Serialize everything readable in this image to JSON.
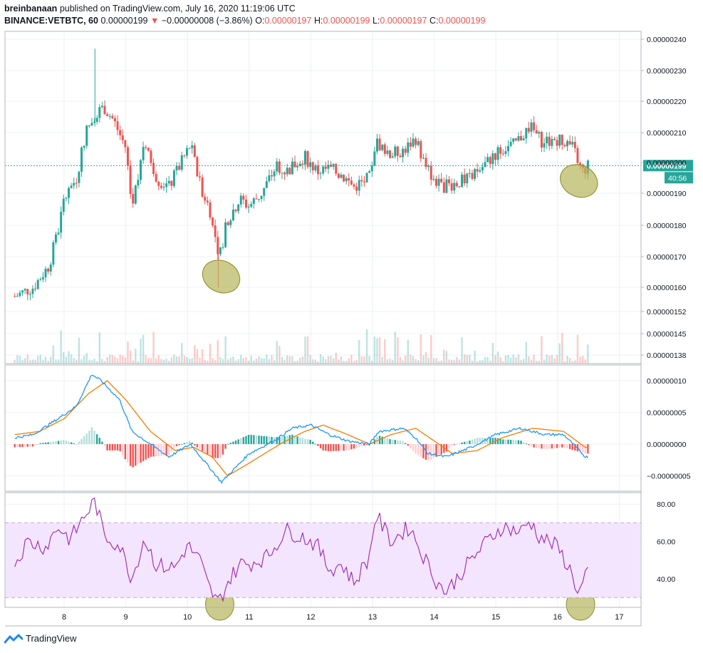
{
  "header": {
    "author": "breinbanaan",
    "published": "published on TradingView.com, July 16, 2020 11:19:06 UTC",
    "symbol": "BINANCE:VETBTC, 60",
    "last": "0.00000199",
    "change_arrow": "▼",
    "change": "−0.00000008 (−3.86%)",
    "o_label": "O:",
    "o_value": "0.00000197",
    "h_label": "H:",
    "h_value": "0.00000199",
    "l_label": "L:",
    "l_value": "0.00000197",
    "c_label": "C:",
    "c_value": "0.00000199"
  },
  "price_badge": {
    "value": "0.00000199",
    "countdown": "40:56"
  },
  "footer": {
    "brand": "TradingView",
    "logo_icon": "tradingview-logo-icon"
  },
  "colors": {
    "up": "#26a69a",
    "down": "#ef5350",
    "macd": "#2196f3",
    "signal": "#f57c00",
    "rsi": "#9c27b0",
    "rsi_band": "#f3e5fd",
    "highlight": "#b5b55a",
    "grid": "#eef0f3",
    "price_line": "#26a69a"
  },
  "chart_data": [
    {
      "type": "candlestick",
      "title": "BINANCE:VETBTC, 60",
      "x_tick_labels": [
        "8",
        "9",
        "10",
        "11",
        "12",
        "13",
        "14",
        "15",
        "16",
        "17"
      ],
      "y_tick_labels": [
        "0.00000240",
        "0.00000230",
        "0.00000220",
        "0.00000210",
        "0.00000200",
        "0.00000190",
        "0.00000180",
        "0.00000170",
        "0.00000160",
        "0.00000152",
        "0.00000145",
        "0.00000138"
      ],
      "x_range_days": [
        7.2,
        17.3
      ],
      "current_price": 1.99e-06,
      "close_path": [
        [
          7.2,
          1.57e-06
        ],
        [
          7.5,
          1.6e-06
        ],
        [
          7.75,
          1.67e-06
        ],
        [
          7.9,
          1.78e-06
        ],
        [
          8.0,
          1.88e-06
        ],
        [
          8.2,
          1.95e-06
        ],
        [
          8.35,
          2.1e-06
        ],
        [
          8.5,
          2.16e-06
        ],
        [
          8.65,
          2.18e-06
        ],
        [
          8.8,
          2.14e-06
        ],
        [
          9.0,
          2.05e-06
        ],
        [
          9.1,
          1.85e-06
        ],
        [
          9.3,
          2.08e-06
        ],
        [
          9.5,
          1.95e-06
        ],
        [
          9.7,
          1.92e-06
        ],
        [
          9.9,
          2e-06
        ],
        [
          10.05,
          2.06e-06
        ],
        [
          10.2,
          1.93e-06
        ],
        [
          10.4,
          1.83e-06
        ],
        [
          10.5,
          1.68e-06
        ],
        [
          10.65,
          1.82e-06
        ],
        [
          10.85,
          1.88e-06
        ],
        [
          11.0,
          1.86e-06
        ],
        [
          11.2,
          1.9e-06
        ],
        [
          11.45,
          1.99e-06
        ],
        [
          11.6,
          1.97e-06
        ],
        [
          11.9,
          2.02e-06
        ],
        [
          12.1,
          1.97e-06
        ],
        [
          12.3,
          1.98e-06
        ],
        [
          12.5,
          1.96e-06
        ],
        [
          12.7,
          1.92e-06
        ],
        [
          12.95,
          1.95e-06
        ],
        [
          13.05,
          2.07e-06
        ],
        [
          13.3,
          2.03e-06
        ],
        [
          13.5,
          2.04e-06
        ],
        [
          13.7,
          2.08e-06
        ],
        [
          13.85,
          1.99e-06
        ],
        [
          14.1,
          1.92e-06
        ],
        [
          14.3,
          1.93e-06
        ],
        [
          14.6,
          1.95e-06
        ],
        [
          14.85,
          2e-06
        ],
        [
          15.05,
          2.04e-06
        ],
        [
          15.3,
          2.06e-06
        ],
        [
          15.55,
          2.12e-06
        ],
        [
          15.75,
          2.07e-06
        ],
        [
          16.05,
          2.08e-06
        ],
        [
          16.25,
          2.05e-06
        ],
        [
          16.4,
          1.97e-06
        ],
        [
          16.5,
          1.99e-06
        ]
      ],
      "highlights": [
        {
          "x_day": 10.5,
          "price": 1.635e-06
        },
        {
          "x_day": 16.3,
          "price": 1.94e-06
        }
      ]
    },
    {
      "type": "volume",
      "series": [
        {
          "values_relative": "histogram under price pane"
        }
      ]
    },
    {
      "type": "macd",
      "y_tick_labels": [
        "0.00000010",
        "0.00000005",
        "0.00000000",
        "−0.00000005"
      ],
      "macd_path": [
        [
          7.2,
          1e-08
        ],
        [
          7.5,
          1.5e-08
        ],
        [
          7.9,
          4e-08
        ],
        [
          8.2,
          6e-08
        ],
        [
          8.45,
          1.1e-07
        ],
        [
          8.6,
          1e-07
        ],
        [
          8.9,
          7e-08
        ],
        [
          9.1,
          2e-08
        ],
        [
          9.4,
          0.0
        ],
        [
          9.7,
          -2e-08
        ],
        [
          10.05,
          0.0
        ],
        [
          10.3,
          -3e-08
        ],
        [
          10.55,
          -6e-08
        ],
        [
          10.8,
          -3.5e-08
        ],
        [
          11.0,
          -1.5e-08
        ],
        [
          11.4,
          5e-09
        ],
        [
          11.7,
          2.5e-08
        ],
        [
          12.0,
          3e-08
        ],
        [
          12.3,
          1.5e-08
        ],
        [
          12.6,
          5e-09
        ],
        [
          12.95,
          0.0
        ],
        [
          13.1,
          2e-08
        ],
        [
          13.5,
          2.5e-08
        ],
        [
          13.7,
          1e-08
        ],
        [
          13.9,
          -1.5e-08
        ],
        [
          14.2,
          -2e-08
        ],
        [
          14.6,
          -5e-09
        ],
        [
          15.0,
          1.5e-08
        ],
        [
          15.4,
          2.5e-08
        ],
        [
          15.8,
          1.5e-08
        ],
        [
          16.1,
          1.5e-08
        ],
        [
          16.45,
          -2e-08
        ]
      ],
      "signal_path": [
        [
          7.2,
          1.5e-08
        ],
        [
          7.6,
          2e-08
        ],
        [
          8.0,
          4e-08
        ],
        [
          8.4,
          8e-08
        ],
        [
          8.7,
          1e-07
        ],
        [
          9.0,
          7e-08
        ],
        [
          9.4,
          2e-08
        ],
        [
          9.8,
          -1e-08
        ],
        [
          10.1,
          -5e-09
        ],
        [
          10.4,
          -2e-08
        ],
        [
          10.65,
          -5e-08
        ],
        [
          11.0,
          -3e-08
        ],
        [
          11.5,
          0.0
        ],
        [
          11.9,
          2e-08
        ],
        [
          12.2,
          3e-08
        ],
        [
          12.6,
          1.5e-08
        ],
        [
          12.95,
          0.0
        ],
        [
          13.3,
          1.5e-08
        ],
        [
          13.7,
          2.5e-08
        ],
        [
          14.0,
          5e-09
        ],
        [
          14.3,
          -1.5e-08
        ],
        [
          14.7,
          -1e-08
        ],
        [
          15.1,
          1e-08
        ],
        [
          15.6,
          2.5e-08
        ],
        [
          16.1,
          2e-08
        ],
        [
          16.45,
          -5e-09
        ]
      ]
    },
    {
      "type": "rsi",
      "y_tick_labels": [
        "80.00",
        "60.00",
        "40.00"
      ],
      "upper_band": 70,
      "lower_band": 30,
      "rsi_path": [
        [
          7.2,
          48
        ],
        [
          7.4,
          60
        ],
        [
          7.7,
          57
        ],
        [
          7.9,
          68
        ],
        [
          8.1,
          61
        ],
        [
          8.3,
          72
        ],
        [
          8.5,
          82
        ],
        [
          8.65,
          63
        ],
        [
          8.9,
          58
        ],
        [
          9.1,
          40
        ],
        [
          9.3,
          62
        ],
        [
          9.5,
          47
        ],
        [
          9.8,
          46
        ],
        [
          10.0,
          58
        ],
        [
          10.2,
          50
        ],
        [
          10.35,
          35
        ],
        [
          10.5,
          27
        ],
        [
          10.65,
          38
        ],
        [
          10.85,
          48
        ],
        [
          11.0,
          48
        ],
        [
          11.3,
          52
        ],
        [
          11.6,
          66
        ],
        [
          11.9,
          62
        ],
        [
          12.1,
          58
        ],
        [
          12.3,
          45
        ],
        [
          12.5,
          48
        ],
        [
          12.7,
          38
        ],
        [
          12.95,
          52
        ],
        [
          13.05,
          75
        ],
        [
          13.3,
          60
        ],
        [
          13.6,
          68
        ],
        [
          13.8,
          54
        ],
        [
          14.05,
          38
        ],
        [
          14.2,
          33
        ],
        [
          14.5,
          46
        ],
        [
          14.85,
          60
        ],
        [
          15.1,
          68
        ],
        [
          15.4,
          65
        ],
        [
          15.55,
          71
        ],
        [
          15.7,
          63
        ],
        [
          16.0,
          57
        ],
        [
          16.2,
          45
        ],
        [
          16.35,
          32
        ],
        [
          16.45,
          42
        ]
      ]
    }
  ]
}
